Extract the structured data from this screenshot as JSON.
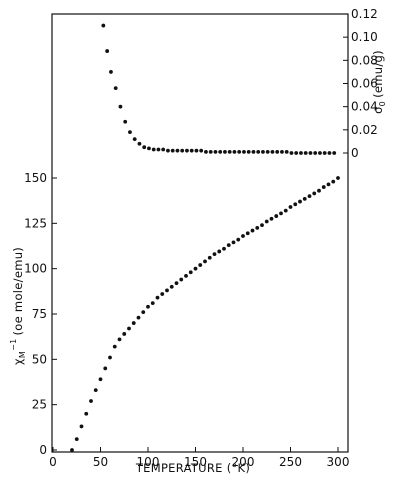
{
  "chart_data": {
    "type": "scatter",
    "x_axis": {
      "label": "TEMPERATURE (°K)",
      "range": [
        0,
        300
      ],
      "ticks": [
        0,
        50,
        100,
        150,
        200,
        250,
        300
      ],
      "tick_labels": [
        "0",
        "50",
        "100",
        "150",
        "200",
        "250",
        "300"
      ]
    },
    "y_axis_left": {
      "label": "χ_M^-1 (oe mole/emu)",
      "label_parts": {
        "symbol": "χ",
        "sub": "M",
        "sup": "−1",
        "unit": "(oe mole/emu)"
      },
      "range": [
        0,
        160
      ],
      "ticks": [
        0,
        25,
        50,
        75,
        100,
        125,
        150
      ],
      "tick_labels": [
        "0",
        "25",
        "50",
        "75",
        "100",
        "125",
        "150"
      ]
    },
    "y_axis_right": {
      "label": "σ0 (emu/g)",
      "label_parts": {
        "symbol": "σ",
        "sub": "0",
        "unit": "(emu/g)"
      },
      "range": [
        0,
        0.12
      ],
      "ticks": [
        0,
        0.02,
        0.04,
        0.06,
        0.08,
        0.1,
        0.12
      ],
      "tick_labels": [
        "0",
        "0.02",
        "0.04",
        "0.06",
        "0.08",
        "0.10",
        "0.12"
      ]
    },
    "grid": false,
    "legend": "none",
    "series": [
      {
        "axis": "left",
        "color": "#111111",
        "points": [
          [
            20,
            0
          ],
          [
            25,
            6
          ],
          [
            30,
            13
          ],
          [
            35,
            20
          ],
          [
            40,
            27
          ],
          [
            45,
            33
          ],
          [
            50,
            39
          ],
          [
            55,
            45
          ],
          [
            60,
            51
          ],
          [
            65,
            57
          ],
          [
            70,
            61
          ],
          [
            75,
            64
          ],
          [
            80,
            67
          ],
          [
            85,
            70
          ],
          [
            90,
            73
          ],
          [
            95,
            76
          ],
          [
            100,
            79
          ],
          [
            105,
            81
          ],
          [
            110,
            84
          ],
          [
            115,
            86
          ],
          [
            120,
            88
          ],
          [
            125,
            90
          ],
          [
            130,
            92
          ],
          [
            135,
            94
          ],
          [
            140,
            96
          ],
          [
            145,
            98
          ],
          [
            150,
            100
          ],
          [
            155,
            102
          ],
          [
            160,
            104
          ],
          [
            165,
            106
          ],
          [
            170,
            108
          ],
          [
            175,
            109.5
          ],
          [
            180,
            111
          ],
          [
            185,
            113
          ],
          [
            190,
            114.5
          ],
          [
            195,
            116
          ],
          [
            200,
            118
          ],
          [
            205,
            119.5
          ],
          [
            210,
            121
          ],
          [
            215,
            122.5
          ],
          [
            220,
            124
          ],
          [
            225,
            126
          ],
          [
            230,
            127.5
          ],
          [
            235,
            129
          ],
          [
            240,
            130.5
          ],
          [
            245,
            132
          ],
          [
            250,
            134
          ],
          [
            255,
            135.5
          ],
          [
            260,
            137
          ],
          [
            265,
            138.5
          ],
          [
            270,
            140
          ],
          [
            275,
            141.5
          ],
          [
            280,
            143
          ],
          [
            285,
            145
          ],
          [
            290,
            146.5
          ],
          [
            295,
            148
          ],
          [
            300,
            150
          ]
        ]
      },
      {
        "axis": "right",
        "color": "#111111",
        "points": [
          [
            53,
            0.11
          ],
          [
            57,
            0.088
          ],
          [
            61,
            0.07
          ],
          [
            66,
            0.056
          ],
          [
            71,
            0.04
          ],
          [
            76,
            0.027
          ],
          [
            81,
            0.018
          ],
          [
            86,
            0.012
          ],
          [
            91,
            0.008
          ],
          [
            96,
            0.005
          ],
          [
            101,
            0.004
          ],
          [
            106,
            0.003
          ],
          [
            111,
            0.003
          ],
          [
            116,
            0.003
          ],
          [
            121,
            0.002
          ],
          [
            126,
            0.002
          ],
          [
            131,
            0.002
          ],
          [
            136,
            0.002
          ],
          [
            141,
            0.002
          ],
          [
            146,
            0.002
          ],
          [
            151,
            0.002
          ],
          [
            156,
            0.002
          ],
          [
            161,
            0.001
          ],
          [
            166,
            0.001
          ],
          [
            171,
            0.001
          ],
          [
            176,
            0.001
          ],
          [
            181,
            0.001
          ],
          [
            186,
            0.001
          ],
          [
            191,
            0.001
          ],
          [
            196,
            0.001
          ],
          [
            201,
            0.001
          ],
          [
            206,
            0.001
          ],
          [
            211,
            0.001
          ],
          [
            216,
            0.001
          ],
          [
            221,
            0.001
          ],
          [
            226,
            0.001
          ],
          [
            231,
            0.001
          ],
          [
            236,
            0.001
          ],
          [
            241,
            0.001
          ],
          [
            246,
            0.001
          ],
          [
            251,
            0.0
          ],
          [
            256,
            0.0
          ],
          [
            261,
            0.0
          ],
          [
            266,
            0.0
          ],
          [
            271,
            0.0
          ],
          [
            276,
            0.0
          ],
          [
            281,
            0.0
          ],
          [
            286,
            0.0
          ],
          [
            291,
            0.0
          ],
          [
            296,
            0.0
          ]
        ]
      }
    ]
  }
}
